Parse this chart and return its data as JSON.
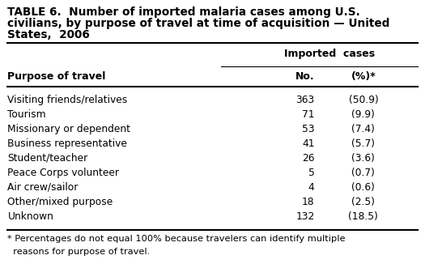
{
  "title_line1": "TABLE 6.  Number of imported malaria cases among U.S.",
  "title_line2": "civilians, by purpose of travel at time of acquisition — United",
  "title_line3": "States,  2006",
  "col_header_group": "Imported  cases",
  "col_header_pot": "Purpose of travel",
  "col_header_no": "No.",
  "col_header_pct": "(%)*",
  "rows": [
    [
      "Visiting friends/relatives",
      "363",
      "(50.9)"
    ],
    [
      "Tourism",
      "71",
      "(9.9)"
    ],
    [
      "Missionary or dependent",
      "53",
      "(7.4)"
    ],
    [
      "Business representative",
      "41",
      "(5.7)"
    ],
    [
      "Student/teacher",
      "26",
      "(3.6)"
    ],
    [
      "Peace Corps volunteer",
      "5",
      "(0.7)"
    ],
    [
      "Air crew/sailor",
      "4",
      "(0.6)"
    ],
    [
      "Other/mixed purpose",
      "18",
      "(2.5)"
    ],
    [
      "Unknown",
      "132",
      "(18.5)"
    ]
  ],
  "footnote_line1": "* Percentages do not equal 100% because travelers can identify multiple",
  "footnote_line2": "  reasons for purpose of travel.",
  "bg_color": "#ffffff",
  "text_color": "#000000",
  "title_fontsize": 9.8,
  "header_fontsize": 9.0,
  "data_fontsize": 8.8,
  "footnote_fontsize": 8.2
}
